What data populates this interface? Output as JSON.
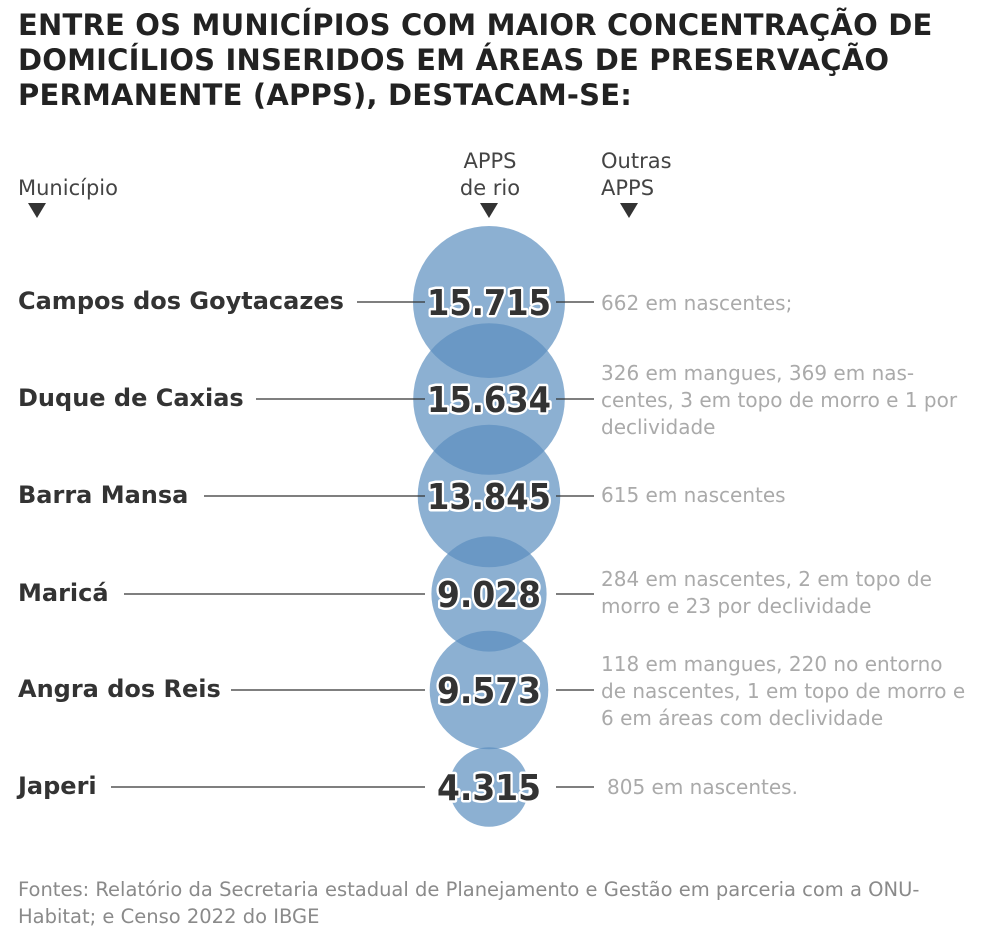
{
  "title": "ENTRE OS MUNICÍPIOS COM MAIOR CONCENTRAÇÃO DE DOMICÍLIOS INSERIDOS EM ÁREAS DE PRESERVAÇÃO PERMANENTE (APPS), DESTACAM-SE:",
  "headers": {
    "municipio": "Município",
    "rio_line1": "APPS",
    "rio_line2": "de rio",
    "outras_line1": "Outras",
    "outras_line2": "APPS"
  },
  "colors": {
    "bubble": "#5b8fbf",
    "bubble_opacity": 0.7,
    "value_text": "#333333",
    "value_stroke": "#ffffff",
    "connector": "#333333"
  },
  "chart_data": {
    "type": "bubble",
    "title": "ENTRE OS MUNICÍPIOS COM MAIOR CONCENTRAÇÃO DE DOMICÍLIOS INSERIDOS EM ÁREAS DE PRESERVAÇÃO PERMANENTE (APPS), DESTACAM-SE:",
    "columns": [
      "Município",
      "APPS de rio",
      "Outras APPS"
    ],
    "rows": [
      {
        "municipio": "Campos dos Goytacazes",
        "apps_rio": 15715,
        "label": "15.715",
        "outras": "662 em nascentes;"
      },
      {
        "municipio": "Duque de Caxias",
        "apps_rio": 15634,
        "label": "15.634",
        "outras": "326 em mangues, 369 em nas-centes, 3 em topo de morro e 1 por declividade"
      },
      {
        "municipio": "Barra Mansa",
        "apps_rio": 13845,
        "label": "13.845",
        "outras": "615 em nascentes"
      },
      {
        "municipio": "Maricá",
        "apps_rio": 9028,
        "label": "9.028",
        "outras": "284 em nascentes, 2 em topo de morro e 23 por declividade"
      },
      {
        "municipio": "Angra dos Reis",
        "apps_rio": 9573,
        "label": "9.573",
        "outras": "118 em mangues, 220 no entorno de nascentes, 1 em topo de morro e 6 em áreas com declividade"
      },
      {
        "municipio": "Japeri",
        "apps_rio": 4315,
        "label": "4.315",
        "outras": "805 em nascentes."
      }
    ]
  },
  "source": "Fontes: Relatório da Secretaria estadual de Planejamento e Gestão em parceria com a ONU-Habitat; e Censo 2022 do IBGE"
}
